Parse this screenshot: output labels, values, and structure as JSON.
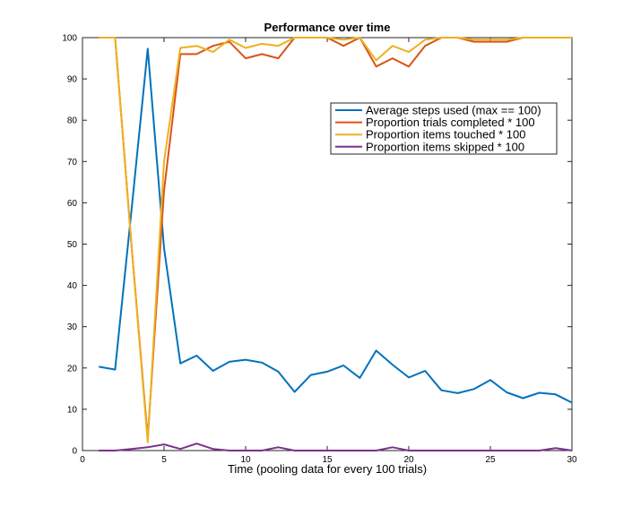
{
  "chart_data": {
    "type": "line",
    "title": "Performance over time",
    "xlabel": "Time (pooling data for every 100 trials)",
    "ylabel": "",
    "xlim": [
      0,
      30
    ],
    "ylim": [
      0,
      100
    ],
    "xticks": [
      0,
      5,
      10,
      15,
      20,
      25,
      30
    ],
    "yticks": [
      0,
      10,
      20,
      30,
      40,
      50,
      60,
      70,
      80,
      90,
      100
    ],
    "grid": false,
    "legend_position": "upper-right",
    "x": [
      1,
      2,
      3,
      4,
      5,
      6,
      7,
      8,
      9,
      10,
      11,
      12,
      13,
      14,
      15,
      16,
      17,
      18,
      19,
      20,
      21,
      22,
      23,
      24,
      25,
      26,
      27,
      28,
      29,
      30
    ],
    "series": [
      {
        "name": "Average steps used (max == 100)",
        "color": "#0072BD",
        "values": [
          20.3,
          19.6,
          58.0,
          97.3,
          49.0,
          21.1,
          23.0,
          19.3,
          21.5,
          22.0,
          21.3,
          19.1,
          14.2,
          18.3,
          19.1,
          20.6,
          17.6,
          24.2,
          20.8,
          17.7,
          19.3,
          14.6,
          13.9,
          14.9,
          17.1,
          14.1,
          12.7,
          14.0,
          13.6,
          11.6
        ]
      },
      {
        "name": "Proportion trials completed * 100",
        "color": "#D95319",
        "values": [
          100,
          100,
          50,
          3,
          63,
          96,
          96,
          98,
          99,
          95,
          96,
          95,
          100,
          100,
          100,
          98,
          100,
          93,
          95,
          93,
          98,
          100,
          100,
          99,
          99,
          99,
          100,
          100,
          100,
          100
        ]
      },
      {
        "name": "Proportion items touched * 100",
        "color": "#EDB120",
        "values": [
          100,
          100,
          50,
          2,
          70,
          97.5,
          98,
          96.5,
          99.5,
          97.5,
          98.5,
          98,
          100,
          100,
          100,
          99.5,
          100,
          94.5,
          98,
          96.5,
          99.5,
          100,
          100,
          99.5,
          99.5,
          99.5,
          100,
          100,
          100,
          100
        ]
      },
      {
        "name": "Proportion items skipped * 100",
        "color": "#7E2F8E",
        "values": [
          0,
          0,
          0.4,
          0.8,
          1.5,
          0.4,
          1.7,
          0.4,
          0,
          0,
          0,
          0.8,
          0,
          0,
          0,
          0,
          0,
          0,
          0.8,
          0,
          0,
          0,
          0,
          0,
          0,
          0,
          0,
          0,
          0.6,
          0
        ]
      }
    ]
  }
}
